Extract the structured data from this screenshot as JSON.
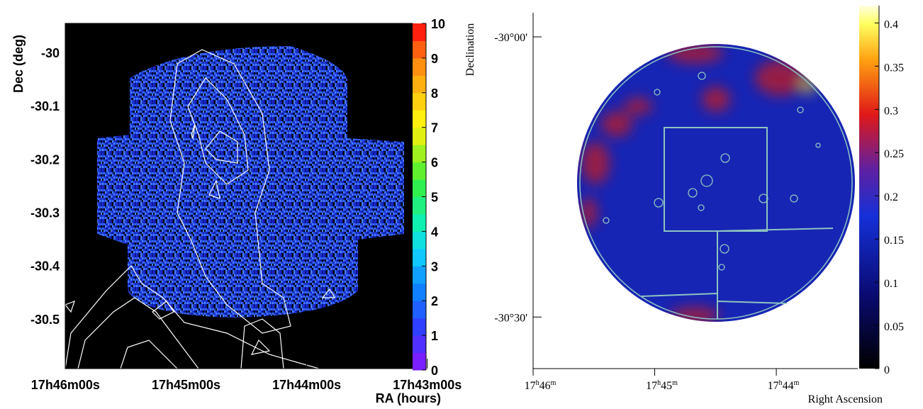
{
  "chart_data": [
    {
      "type": "skymap",
      "x_label": "RA (hours)",
      "y_label": "Dec (deg)",
      "xlim": [
        17.7667,
        17.7187
      ],
      "ylim": [
        -29.944,
        -30.592
      ],
      "xticks": [
        {
          "value": 17.766667,
          "label": "17h46m00s"
        },
        {
          "value": 17.75,
          "label": "17h45m00s"
        },
        {
          "value": 17.733333,
          "label": "17h44m00s"
        },
        {
          "value": 17.716667,
          "label": "17h43m00s"
        }
      ],
      "yticks": [
        -30,
        -30.1,
        -30.2,
        -30.3,
        -30.4,
        -30.5
      ],
      "colorbar_lim": [
        0,
        10
      ],
      "colorbar_ticks": [
        0,
        1,
        2,
        3,
        4,
        5,
        6,
        7,
        8,
        9,
        10
      ]
    },
    {
      "type": "skymap",
      "x_label": "Right Ascension",
      "y_label": "Declination",
      "xlim": [
        17.766667,
        17.722167
      ],
      "ylim": [
        -29.957,
        -30.592
      ],
      "xticks": [
        {
          "value": 17.766667,
          "label": "17h46m"
        },
        {
          "value": 17.75,
          "label": "17h45m"
        },
        {
          "value": 17.733333,
          "label": "17h44m"
        }
      ],
      "yticks": [
        {
          "value": -30,
          "label": "-30°00'"
        },
        {
          "value": -30.5,
          "label": "-30°30'"
        }
      ],
      "colorbar_lim": [
        0,
        0.42
      ],
      "colorbar_ticks": [
        0,
        0.05,
        0.1,
        0.15,
        0.2,
        0.25,
        0.3,
        0.35,
        0.4
      ]
    }
  ]
}
